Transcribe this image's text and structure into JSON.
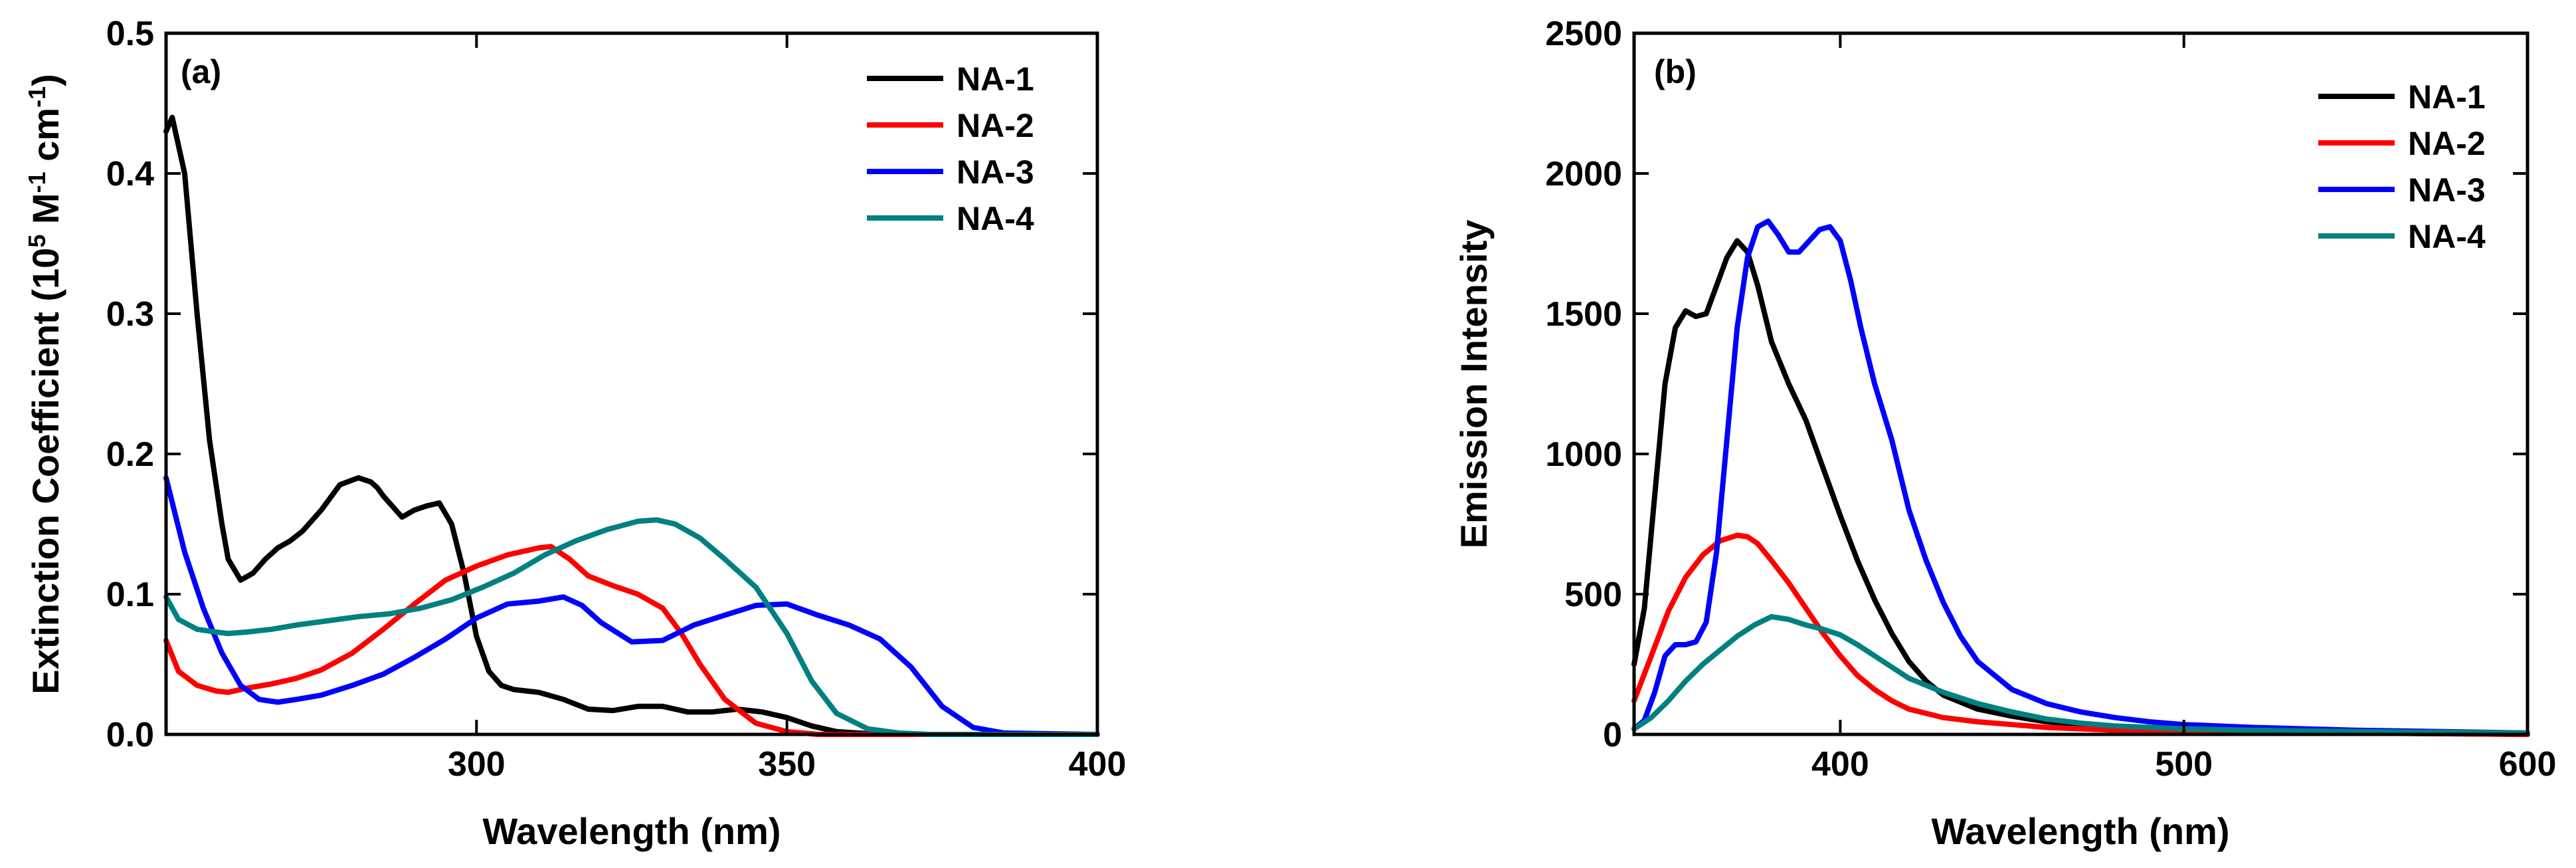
{
  "chart_data": [
    {
      "type": "line",
      "panel_label": "(a)",
      "xlabel": "Wavelength (nm)",
      "ylabel": {
        "prefix": "Extinction Coefficient (10",
        "exp1": "5",
        "mid1": " M",
        "exp2": "-1",
        "mid2": " cm",
        "exp3": "-1",
        "suffix": ")"
      },
      "xlim": [
        250,
        400
      ],
      "ylim": [
        0,
        0.5
      ],
      "xticks": [
        300,
        350,
        400
      ],
      "xtick_labels": [
        "300",
        "350",
        "400"
      ],
      "yticks": [
        0.0,
        0.1,
        0.2,
        0.3,
        0.4,
        0.5
      ],
      "ytick_labels": [
        "0.0",
        "0.1",
        "0.2",
        "0.3",
        "0.4",
        "0.5"
      ],
      "legend_position": "top-right",
      "series": [
        {
          "name": "NA-1",
          "color": "#000000",
          "x": [
            250,
            251,
            253,
            255,
            257,
            259,
            260,
            262,
            264,
            266,
            268,
            270,
            272,
            275,
            278,
            281,
            283,
            284,
            285,
            287,
            288,
            290,
            292,
            294,
            296,
            298,
            300,
            302,
            304,
            306,
            310,
            314,
            318,
            322,
            326,
            330,
            334,
            338,
            342,
            346,
            350,
            354,
            358,
            365,
            375,
            400
          ],
          "y": [
            0.43,
            0.44,
            0.4,
            0.3,
            0.21,
            0.15,
            0.125,
            0.11,
            0.115,
            0.125,
            0.133,
            0.138,
            0.145,
            0.16,
            0.178,
            0.183,
            0.18,
            0.176,
            0.17,
            0.16,
            0.155,
            0.16,
            0.163,
            0.165,
            0.15,
            0.115,
            0.07,
            0.045,
            0.035,
            0.032,
            0.03,
            0.025,
            0.018,
            0.017,
            0.02,
            0.02,
            0.016,
            0.016,
            0.018,
            0.016,
            0.012,
            0.006,
            0.002,
            0.0,
            0.0,
            0.0
          ]
        },
        {
          "name": "NA-2",
          "color": "#ff0000",
          "x": [
            250,
            252,
            255,
            258,
            260,
            263,
            267,
            271,
            275,
            280,
            285,
            290,
            295,
            300,
            305,
            310,
            312,
            315,
            318,
            322,
            326,
            330,
            333,
            336,
            340,
            345,
            350,
            355,
            360,
            400
          ],
          "y": [
            0.067,
            0.045,
            0.035,
            0.031,
            0.03,
            0.033,
            0.036,
            0.04,
            0.046,
            0.058,
            0.075,
            0.093,
            0.11,
            0.12,
            0.128,
            0.133,
            0.134,
            0.125,
            0.113,
            0.106,
            0.1,
            0.09,
            0.072,
            0.05,
            0.025,
            0.008,
            0.002,
            0.0,
            0.0,
            0.0
          ]
        },
        {
          "name": "NA-3",
          "color": "#0000ff",
          "x": [
            250,
            253,
            256,
            259,
            262,
            265,
            268,
            271,
            275,
            280,
            285,
            290,
            295,
            300,
            305,
            310,
            314,
            317,
            320,
            325,
            330,
            335,
            340,
            345,
            350,
            355,
            360,
            365,
            370,
            375,
            380,
            385,
            400
          ],
          "y": [
            0.183,
            0.13,
            0.09,
            0.058,
            0.035,
            0.025,
            0.023,
            0.025,
            0.028,
            0.035,
            0.043,
            0.055,
            0.068,
            0.083,
            0.093,
            0.095,
            0.098,
            0.092,
            0.08,
            0.066,
            0.067,
            0.078,
            0.085,
            0.092,
            0.093,
            0.085,
            0.078,
            0.068,
            0.048,
            0.02,
            0.005,
            0.001,
            0.0
          ]
        },
        {
          "name": "NA-4",
          "color": "#008080",
          "x": [
            250,
            252,
            255,
            258,
            260,
            263,
            267,
            271,
            276,
            281,
            286,
            291,
            296,
            301,
            306,
            311,
            316,
            321,
            326,
            329,
            332,
            336,
            340,
            345,
            350,
            354,
            358,
            363,
            368,
            373,
            380,
            400
          ],
          "y": [
            0.098,
            0.082,
            0.075,
            0.073,
            0.072,
            0.073,
            0.075,
            0.078,
            0.081,
            0.084,
            0.086,
            0.09,
            0.096,
            0.105,
            0.115,
            0.128,
            0.138,
            0.146,
            0.152,
            0.153,
            0.15,
            0.14,
            0.125,
            0.105,
            0.072,
            0.038,
            0.015,
            0.004,
            0.001,
            0.0,
            0.0,
            0.0
          ]
        }
      ]
    },
    {
      "type": "line",
      "panel_label": "(b)",
      "xlabel": "Wavelength (nm)",
      "ylabel": "Emission Intensity",
      "xlim": [
        340,
        600
      ],
      "ylim": [
        0,
        2500
      ],
      "xticks": [
        400,
        500,
        600
      ],
      "xtick_labels": [
        "400",
        "500",
        "600"
      ],
      "yticks": [
        0,
        500,
        1000,
        1500,
        2000,
        2500
      ],
      "ytick_labels": [
        "0",
        "500",
        "1000",
        "1500",
        "2000",
        "2500"
      ],
      "legend_position": "top-right",
      "series": [
        {
          "name": "NA-1",
          "color": "#000000",
          "x": [
            340,
            343,
            346,
            349,
            352,
            355,
            358,
            361,
            364,
            367,
            370,
            373,
            376,
            380,
            385,
            390,
            395,
            400,
            405,
            410,
            415,
            420,
            425,
            430,
            440,
            450,
            460,
            470,
            480,
            500,
            520,
            550,
            600
          ],
          "y": [
            250,
            450,
            850,
            1250,
            1450,
            1510,
            1490,
            1500,
            1600,
            1700,
            1760,
            1720,
            1600,
            1400,
            1250,
            1120,
            950,
            780,
            620,
            480,
            360,
            260,
            190,
            140,
            90,
            65,
            45,
            35,
            25,
            15,
            10,
            5,
            0
          ]
        },
        {
          "name": "NA-2",
          "color": "#ff0000",
          "x": [
            340,
            345,
            350,
            355,
            360,
            365,
            370,
            373,
            376,
            380,
            385,
            390,
            395,
            400,
            405,
            410,
            415,
            420,
            430,
            440,
            450,
            460,
            470,
            480,
            500,
            550,
            600
          ],
          "y": [
            120,
            280,
            440,
            560,
            640,
            690,
            710,
            705,
            680,
            620,
            540,
            450,
            360,
            280,
            210,
            160,
            120,
            90,
            60,
            45,
            35,
            25,
            20,
            15,
            10,
            5,
            0
          ]
        },
        {
          "name": "NA-3",
          "color": "#0000ff",
          "x": [
            340,
            343,
            346,
            349,
            352,
            355,
            358,
            361,
            364,
            367,
            370,
            373,
            376,
            379,
            382,
            385,
            388,
            391,
            394,
            397,
            400,
            403,
            406,
            410,
            415,
            420,
            425,
            430,
            435,
            440,
            450,
            460,
            470,
            480,
            490,
            500,
            520,
            550,
            600
          ],
          "y": [
            20,
            50,
            150,
            280,
            320,
            320,
            330,
            400,
            650,
            1050,
            1450,
            1700,
            1810,
            1830,
            1780,
            1720,
            1720,
            1760,
            1800,
            1810,
            1760,
            1620,
            1450,
            1250,
            1050,
            800,
            620,
            470,
            350,
            260,
            160,
            110,
            80,
            60,
            45,
            35,
            25,
            15,
            5
          ]
        },
        {
          "name": "NA-4",
          "color": "#008080",
          "x": [
            340,
            345,
            350,
            355,
            360,
            365,
            370,
            375,
            380,
            385,
            390,
            395,
            400,
            405,
            410,
            415,
            420,
            430,
            440,
            450,
            460,
            470,
            480,
            500,
            520,
            550,
            600
          ],
          "y": [
            20,
            60,
            120,
            190,
            250,
            300,
            350,
            390,
            420,
            410,
            390,
            375,
            355,
            320,
            280,
            240,
            200,
            150,
            110,
            80,
            55,
            40,
            30,
            20,
            15,
            10,
            5
          ]
        }
      ]
    }
  ]
}
